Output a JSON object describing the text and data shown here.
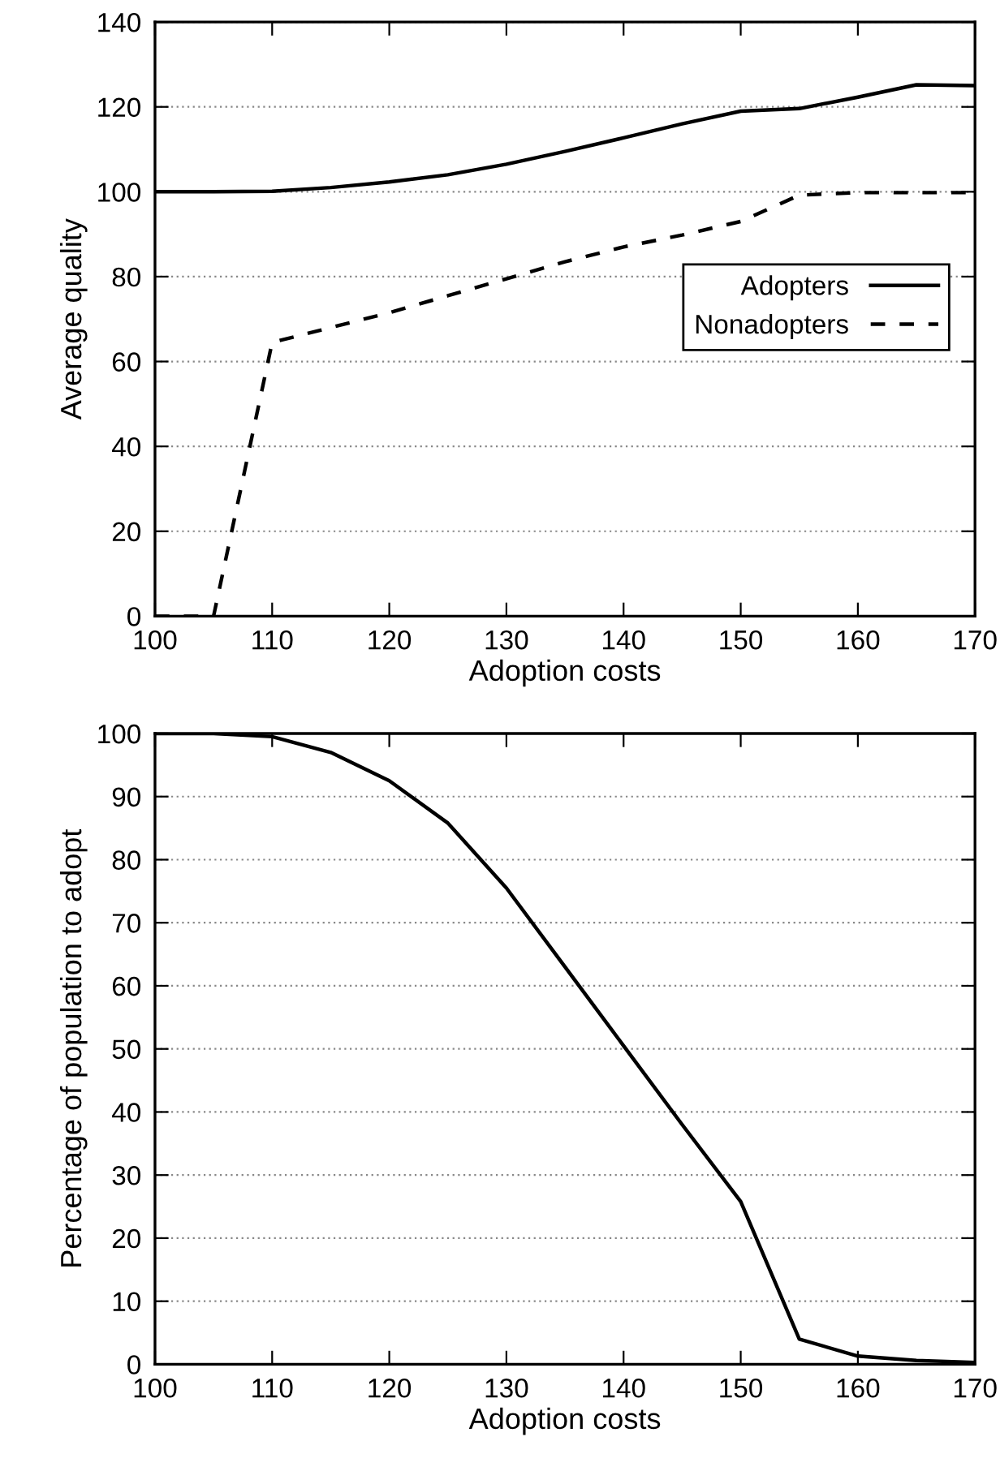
{
  "chart_data": [
    {
      "type": "line",
      "xlabel": "Adoption costs",
      "ylabel": "Average quality",
      "x": [
        100,
        105,
        110,
        115,
        120,
        125,
        130,
        135,
        140,
        145,
        150,
        155,
        160,
        165,
        170
      ],
      "xlim": [
        100,
        170
      ],
      "xticks": [
        100,
        110,
        120,
        130,
        140,
        150,
        160,
        170
      ],
      "ylim": [
        0,
        140
      ],
      "yticks": [
        0,
        20,
        40,
        60,
        80,
        100,
        120,
        140
      ],
      "grid": "y",
      "legend": "right",
      "series": [
        {
          "name": "Adopters",
          "color": "#000000",
          "line_style": "solid",
          "values": [
            100,
            100,
            100.1,
            101,
            102.3,
            104,
            106.5,
            109.5,
            112.7,
            116,
            119,
            119.6,
            122.3,
            125.2,
            125
          ]
        },
        {
          "name": "Nonadopters",
          "color": "#000000",
          "line_style": "dashed",
          "values": [
            0,
            0,
            64.5,
            68,
            71.5,
            75.5,
            79.5,
            83.5,
            87,
            89.8,
            93,
            99.2,
            99.8,
            99.8,
            99.8
          ]
        }
      ]
    },
    {
      "type": "line",
      "xlabel": "Adoption costs",
      "ylabel": "Percentage of population to adopt",
      "x": [
        100,
        105,
        110,
        115,
        120,
        125,
        130,
        135,
        140,
        145,
        150,
        155,
        160,
        165,
        170
      ],
      "xlim": [
        100,
        170
      ],
      "xticks": [
        100,
        110,
        120,
        130,
        140,
        150,
        160,
        170
      ],
      "ylim": [
        0,
        100
      ],
      "yticks": [
        0,
        10,
        20,
        30,
        40,
        50,
        60,
        70,
        80,
        90,
        100
      ],
      "grid": "y",
      "series": [
        {
          "color": "#000000",
          "line_style": "solid",
          "values": [
            100,
            100,
            99.5,
            97,
            92.5,
            85.8,
            75.5,
            63,
            50.5,
            38,
            25.8,
            4,
            1.3,
            0.6,
            0.3
          ]
        }
      ]
    }
  ]
}
